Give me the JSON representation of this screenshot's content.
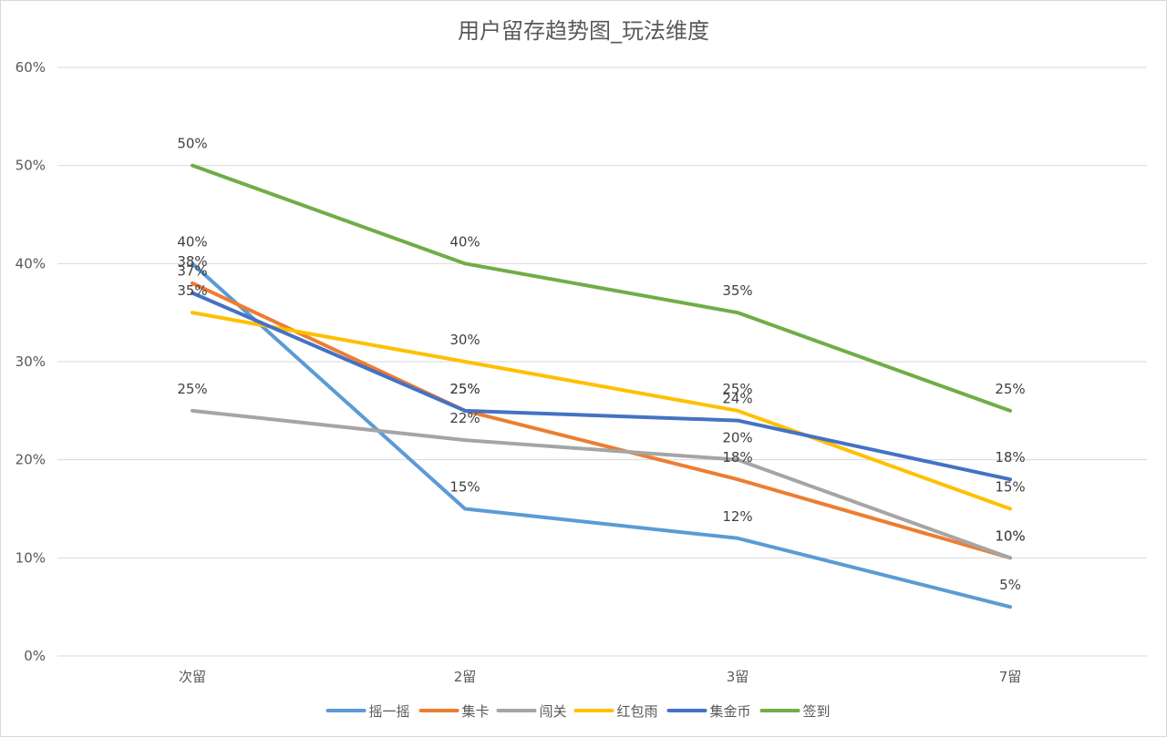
{
  "chart_data": {
    "type": "line",
    "title": "用户留存趋势图_玩法维度",
    "xlabel": "",
    "ylabel": "",
    "categories": [
      "次留",
      "2留",
      "3留",
      "7留"
    ],
    "ylim": [
      0,
      60
    ],
    "y_ticks": [
      0,
      10,
      20,
      30,
      40,
      50,
      60
    ],
    "y_tick_labels": [
      "0%",
      "10%",
      "20%",
      "30%",
      "40%",
      "50%",
      "60%"
    ],
    "grid": "horizontal",
    "legend_position": "bottom",
    "series": [
      {
        "name": "摇一摇",
        "color": "#5b9bd5",
        "values": [
          40,
          15,
          12,
          5
        ],
        "labels": [
          "40%",
          "15%",
          "12%",
          "5%"
        ]
      },
      {
        "name": "集卡",
        "color": "#ed7d31",
        "values": [
          38,
          25,
          18,
          10
        ],
        "labels": [
          "38%",
          "25%",
          "18%",
          "10%"
        ]
      },
      {
        "name": "闯关",
        "color": "#a5a5a5",
        "values": [
          25,
          22,
          20,
          10
        ],
        "labels": [
          "25%",
          "22%",
          "20%",
          "10%"
        ]
      },
      {
        "name": "红包雨",
        "color": "#ffc000",
        "values": [
          35,
          30,
          25,
          15
        ],
        "labels": [
          "35%",
          "30%",
          "25%",
          "15%"
        ]
      },
      {
        "name": "集金币",
        "color": "#4472c4",
        "values": [
          37,
          25,
          24,
          18
        ],
        "labels": [
          "37%",
          "25%",
          "24%",
          "18%"
        ]
      },
      {
        "name": "签到",
        "color": "#70ad47",
        "values": [
          50,
          40,
          35,
          25
        ],
        "labels": [
          "50%",
          "40%",
          "35%",
          "25%"
        ]
      }
    ]
  }
}
